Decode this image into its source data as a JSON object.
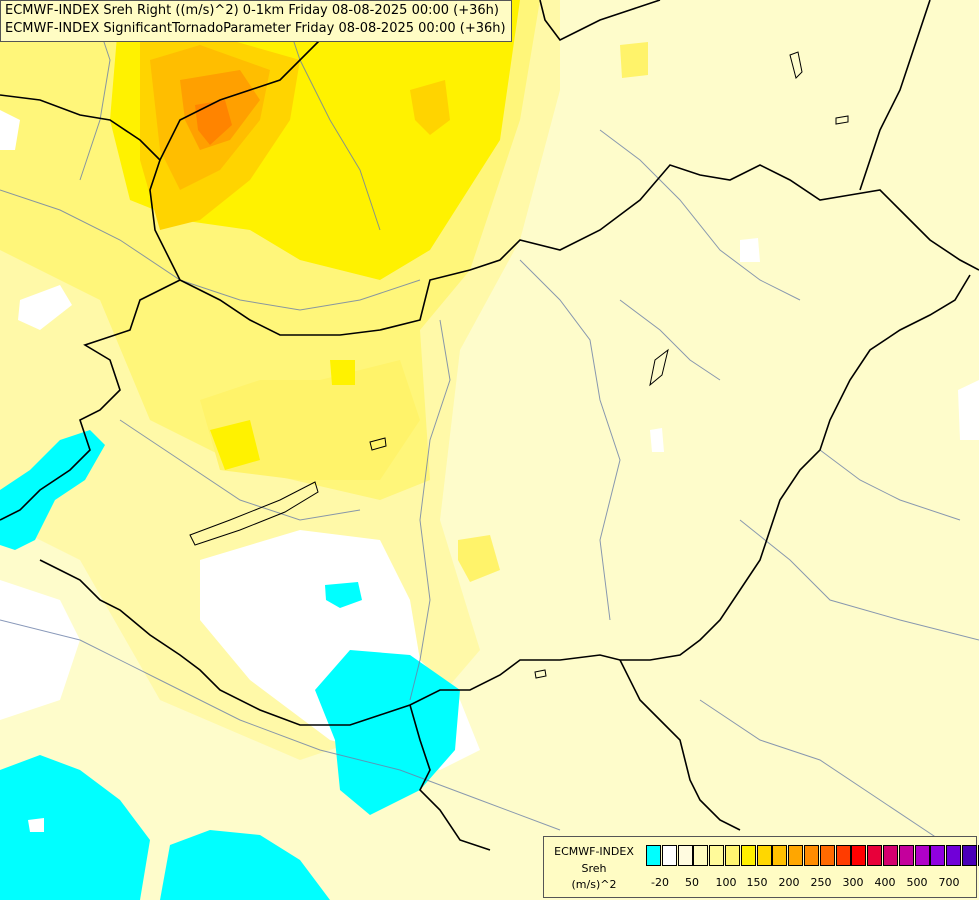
{
  "titles": {
    "line1": "ECMWF-INDEX Sreh Right ((m/s)^2) 0-1km Friday 08-08-2025 00:00 (+36h)",
    "line2": "ECMWF-INDEX SignificantTornadoParameter Friday 08-08-2025 00:00 (+36h)"
  },
  "legend": {
    "source": "ECMWF-INDEX",
    "variable": "Sreh",
    "unit": "(m/s)^2",
    "colors": [
      "#00ffff",
      "#ffffff",
      "#fffbe0",
      "#fffcc0",
      "#fffa9a",
      "#fff570",
      "#fff000",
      "#ffd700",
      "#ffc000",
      "#ffa600",
      "#ff8c00",
      "#ff6a00",
      "#ff3c00",
      "#ff0000",
      "#e8003a",
      "#d4006e",
      "#c4009c",
      "#b000c8",
      "#9000e0",
      "#7000d8",
      "#4a00b8",
      "#2a0090",
      "#000070"
    ],
    "ticks": [
      "-20",
      "50",
      "100",
      "150",
      "200",
      "250",
      "300",
      "400",
      "500",
      "700"
    ]
  }
}
